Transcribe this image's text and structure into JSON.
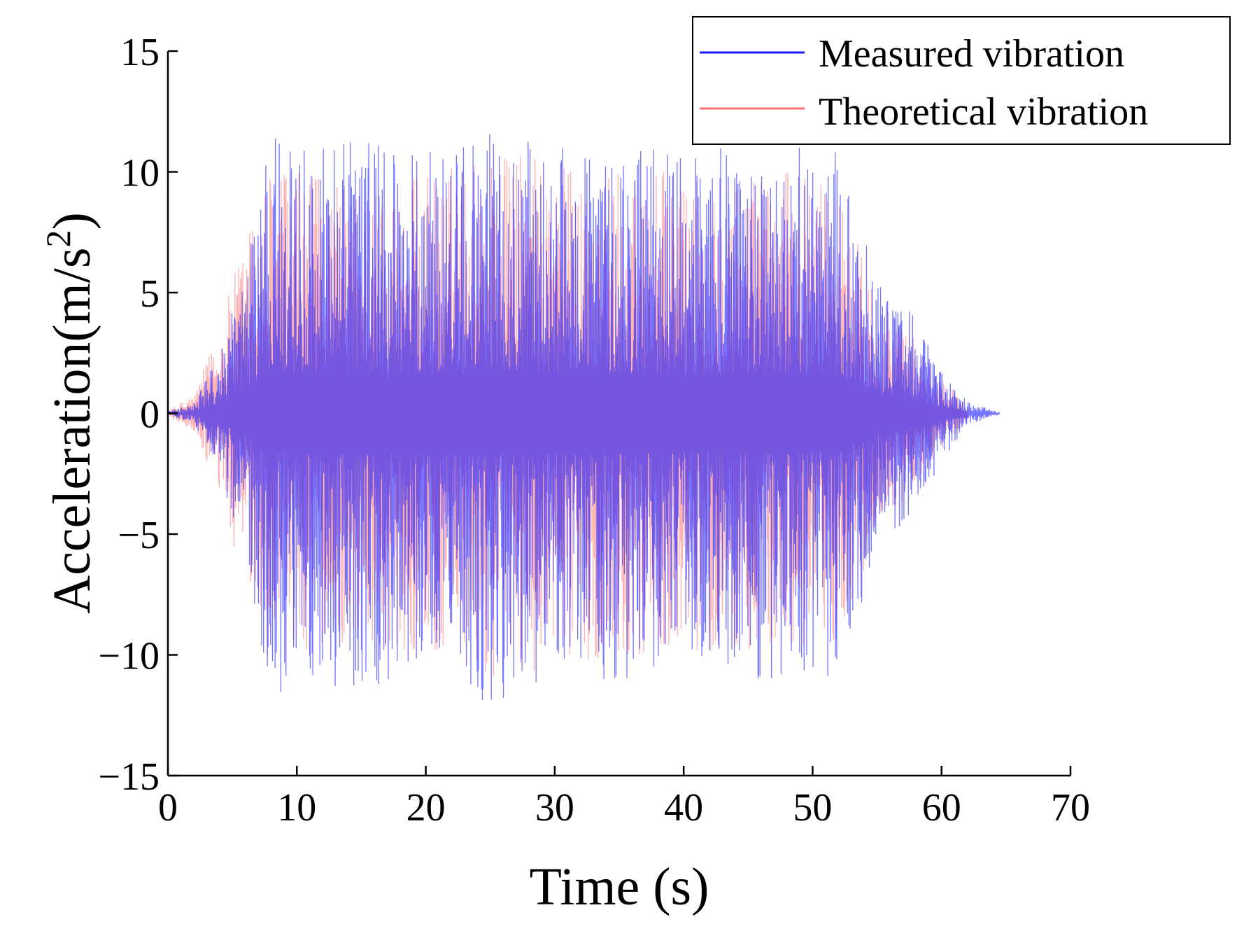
{
  "chart_data": {
    "type": "line",
    "title": "",
    "xlabel": "Time (s)",
    "ylabel": "Acceleration(m/s",
    "ylabel_sup": "2",
    "ylabel_close": ")",
    "xlim": [
      0,
      70
    ],
    "ylim": [
      -15,
      15
    ],
    "xticks": [
      0,
      10,
      20,
      30,
      40,
      50,
      60,
      70
    ],
    "xtick_labels": [
      "0",
      "10",
      "20",
      "30",
      "40",
      "50",
      "60",
      "70"
    ],
    "yticks": [
      15,
      10,
      5,
      0,
      -5,
      -10,
      -15
    ],
    "ytick_labels": [
      "15",
      "10",
      "5",
      "0",
      "−5",
      "−10",
      "−15"
    ],
    "grid": false,
    "legend_position": "top-right",
    "series": [
      {
        "name": "Theoretical vibration",
        "color": "#ff7070",
        "signal_start_s": 0,
        "signal_end_s": 62,
        "envelope_times_s": [
          0,
          2,
          4,
          6,
          8,
          10,
          15,
          20,
          25,
          30,
          35,
          40,
          45,
          50,
          52,
          55,
          58,
          60,
          62
        ],
        "envelope_amplitude": [
          0.1,
          0.8,
          3.5,
          7.5,
          10.5,
          10,
          9.5,
          10,
          11,
          10.5,
          10,
          10,
          10,
          10,
          9.5,
          5,
          3,
          1.5,
          0.3
        ]
      },
      {
        "name": "Measured vibration",
        "color": "#1a1aff",
        "signal_start_s": 0,
        "signal_end_s": 64.5,
        "envelope_times_s": [
          0,
          2,
          4,
          6,
          8,
          10,
          15,
          20,
          25,
          30,
          35,
          40,
          45,
          50,
          52,
          55,
          58,
          60,
          62,
          64.5
        ],
        "envelope_amplitude": [
          0.1,
          0.4,
          2.5,
          6,
          12,
          11,
          11.5,
          11,
          12,
          11,
          11,
          11,
          11,
          11,
          11,
          6,
          4,
          2,
          0.5,
          0.05
        ]
      }
    ]
  }
}
